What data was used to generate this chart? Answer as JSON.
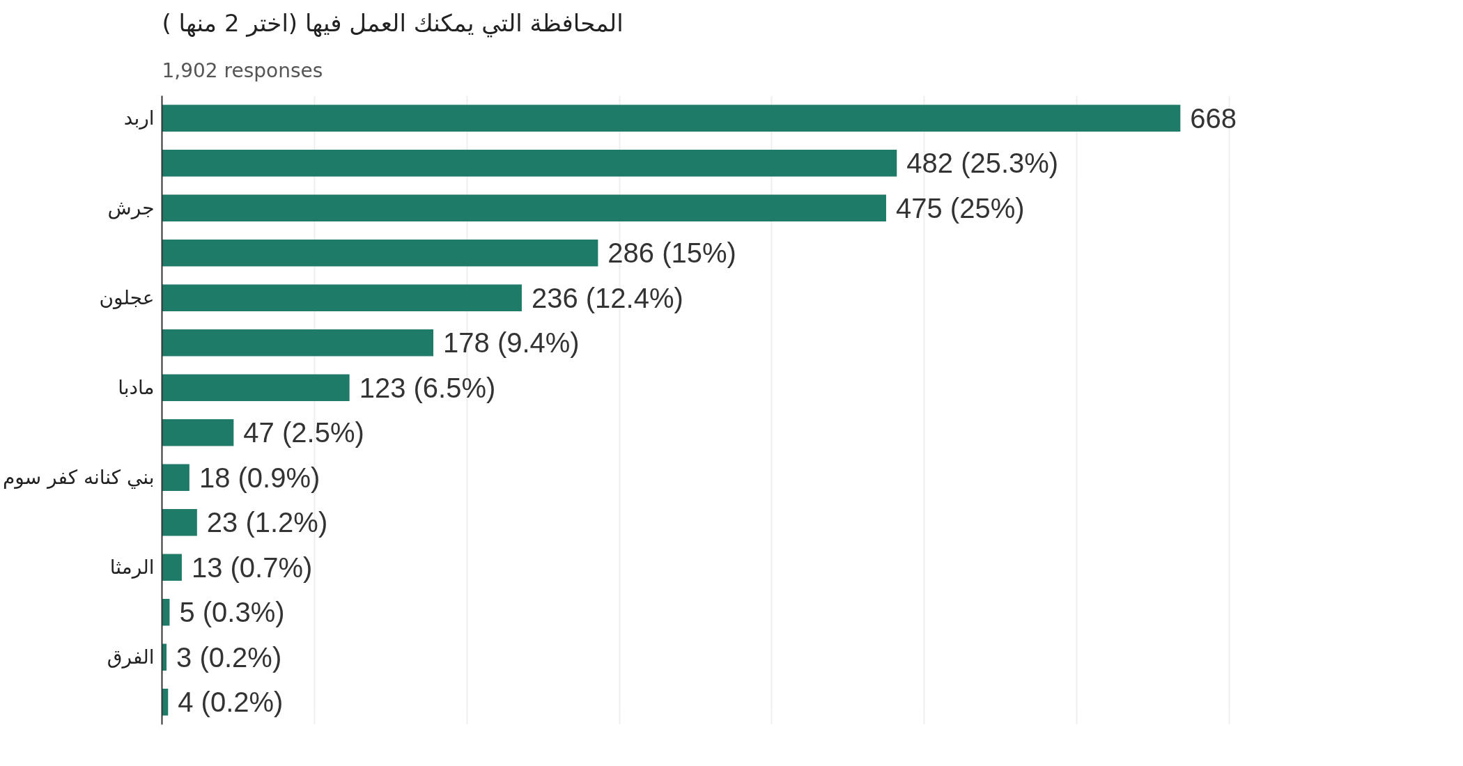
{
  "chart_data": {
    "type": "bar",
    "orientation": "horizontal",
    "title": "المحافظة التي يمكنك العمل فيها (اختر 2 منها )",
    "subtitle": "1,902 responses",
    "categories": [
      "اربد",
      null,
      "جرش",
      null,
      "عجلون",
      null,
      "مادبا",
      null,
      "بني كنانه كفر سوم",
      null,
      "الرمثا",
      null,
      "الفرق",
      null
    ],
    "values": [
      668,
      482,
      475,
      286,
      236,
      178,
      123,
      47,
      18,
      23,
      13,
      5,
      3,
      4
    ],
    "value_labels": [
      "668",
      "482 (25.3%)",
      "475 (25%)",
      "286 (15%)",
      "236 (12.4%)",
      "178 (9.4%)",
      "123 (6.5%)",
      "47 (2.5%)",
      "18 (0.9%)",
      "23 (1.2%)",
      "13 (0.7%)",
      "5 (0.3%)",
      "3 (0.2%)",
      "4 (0.2%)"
    ],
    "color": "#1e7b67",
    "tick_labels": "y",
    "grid": "x"
  }
}
